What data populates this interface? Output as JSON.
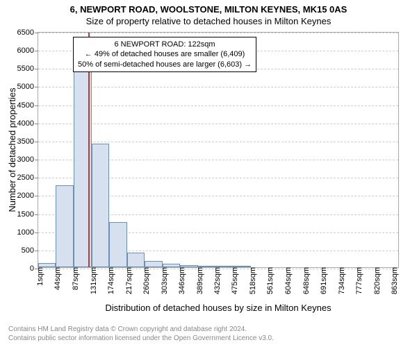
{
  "title_main": "6, NEWPORT ROAD, WOOLSTONE, MILTON KEYNES, MK15 0AS",
  "title_sub": "Size of property relative to detached houses in Milton Keynes",
  "ylabel": "Number of detached properties",
  "xlabel": "Distribution of detached houses by size in Milton Keynes",
  "chart": {
    "type": "histogram",
    "background_color": "#ffffff",
    "grid_color": "#cccccc",
    "axis_color": "#aaaaaa",
    "bar_fill": "#d6e0ef",
    "bar_stroke": "#6b8fb0",
    "marker_color": "#c0392b",
    "label_fontsize": 11,
    "title_fontsize": 13,
    "x_min": 1,
    "x_max": 880,
    "y_min": 0,
    "y_max": 6500,
    "y_ticks": [
      0,
      500,
      1000,
      1500,
      2000,
      2500,
      3000,
      3500,
      4000,
      4500,
      5000,
      5500,
      6000,
      6500
    ],
    "x_ticks": [
      {
        "v": 1,
        "label": "1sqm"
      },
      {
        "v": 44,
        "label": "44sqm"
      },
      {
        "v": 87,
        "label": "87sqm"
      },
      {
        "v": 131,
        "label": "131sqm"
      },
      {
        "v": 174,
        "label": "174sqm"
      },
      {
        "v": 217,
        "label": "217sqm"
      },
      {
        "v": 260,
        "label": "260sqm"
      },
      {
        "v": 303,
        "label": "303sqm"
      },
      {
        "v": 346,
        "label": "346sqm"
      },
      {
        "v": 389,
        "label": "389sqm"
      },
      {
        "v": 432,
        "label": "432sqm"
      },
      {
        "v": 475,
        "label": "475sqm"
      },
      {
        "v": 518,
        "label": "518sqm"
      },
      {
        "v": 561,
        "label": "561sqm"
      },
      {
        "v": 604,
        "label": "604sqm"
      },
      {
        "v": 648,
        "label": "648sqm"
      },
      {
        "v": 691,
        "label": "691sqm"
      },
      {
        "v": 734,
        "label": "734sqm"
      },
      {
        "v": 777,
        "label": "777sqm"
      },
      {
        "v": 820,
        "label": "820sqm"
      },
      {
        "v": 863,
        "label": "863sqm"
      }
    ],
    "bars": [
      {
        "x0": 1,
        "x1": 44,
        "y": 120
      },
      {
        "x0": 44,
        "x1": 87,
        "y": 2250
      },
      {
        "x0": 87,
        "x1": 131,
        "y": 5550
      },
      {
        "x0": 131,
        "x1": 174,
        "y": 3400
      },
      {
        "x0": 174,
        "x1": 217,
        "y": 1250
      },
      {
        "x0": 217,
        "x1": 260,
        "y": 400
      },
      {
        "x0": 260,
        "x1": 303,
        "y": 170
      },
      {
        "x0": 303,
        "x1": 346,
        "y": 100
      },
      {
        "x0": 346,
        "x1": 389,
        "y": 60
      },
      {
        "x0": 389,
        "x1": 432,
        "y": 40
      },
      {
        "x0": 432,
        "x1": 475,
        "y": 30
      },
      {
        "x0": 475,
        "x1": 518,
        "y": 30
      }
    ],
    "marker_x": 122
  },
  "annotation": {
    "line1": "6 NEWPORT ROAD: 122sqm",
    "line2": "← 49% of detached houses are smaller (6,409)",
    "line3": "50% of semi-detached houses are larger (6,603) →"
  },
  "attribution": {
    "line1": "Contains HM Land Registry data © Crown copyright and database right 2024.",
    "line2": "Contains public sector information licensed under the Open Government Licence v3.0."
  }
}
